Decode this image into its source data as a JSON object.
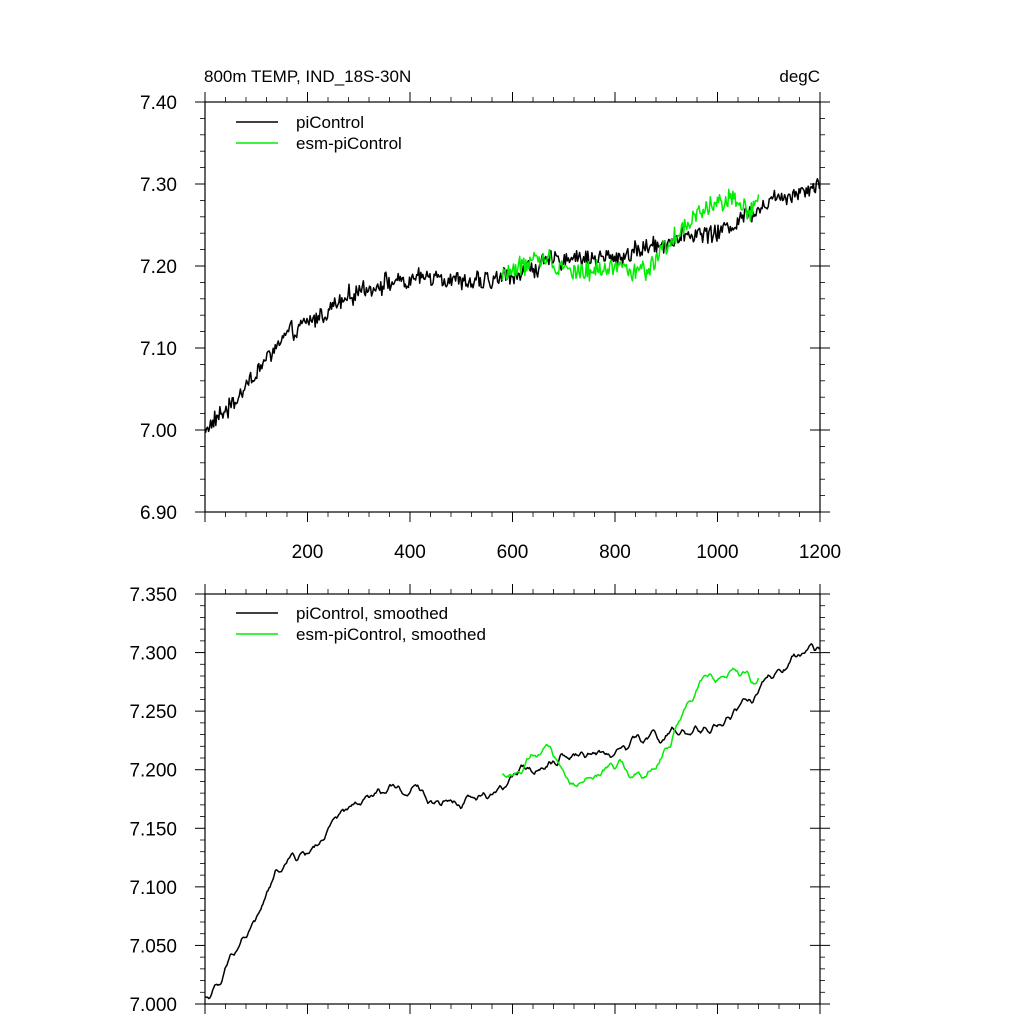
{
  "chart_data": [
    {
      "type": "line",
      "title": "800m TEMP, IND_18S-30N",
      "units": "degC",
      "xlabel": "",
      "ylabel": "",
      "xlim": [
        0,
        1200
      ],
      "ylim": [
        6.9,
        7.4
      ],
      "x_tick_labels": [
        "200",
        "400",
        "600",
        "800",
        "1000",
        "1200"
      ],
      "y_tick_labels": [
        "6.90",
        "7.00",
        "7.10",
        "7.20",
        "7.30",
        "7.40"
      ],
      "legend": [
        "piControl",
        "esm-piControl"
      ],
      "legend_position": "top-left",
      "series": [
        {
          "name": "piControl",
          "color": "#000000",
          "x_start": 1,
          "x_end": 1200,
          "trend_points": [
            [
              1,
              7.0
            ],
            [
              50,
              7.03
            ],
            [
              100,
              7.07
            ],
            [
              150,
              7.11
            ],
            [
              200,
              7.13
            ],
            [
              250,
              7.15
            ],
            [
              300,
              7.17
            ],
            [
              350,
              7.18
            ],
            [
              400,
              7.18
            ],
            [
              450,
              7.19
            ],
            [
              500,
              7.18
            ],
            [
              550,
              7.18
            ],
            [
              600,
              7.19
            ],
            [
              650,
              7.2
            ],
            [
              700,
              7.21
            ],
            [
              750,
              7.21
            ],
            [
              800,
              7.21
            ],
            [
              850,
              7.22
            ],
            [
              900,
              7.23
            ],
            [
              950,
              7.24
            ],
            [
              1000,
              7.24
            ],
            [
              1050,
              7.26
            ],
            [
              1100,
              7.28
            ],
            [
              1150,
              7.29
            ],
            [
              1200,
              7.3
            ]
          ],
          "noise_amplitude": 0.02
        },
        {
          "name": "esm-piControl",
          "color": "#00ee00",
          "x_start": 580,
          "x_end": 1080,
          "trend_points": [
            [
              580,
              7.19
            ],
            [
              620,
              7.2
            ],
            [
              660,
              7.21
            ],
            [
              700,
              7.2
            ],
            [
              740,
              7.19
            ],
            [
              780,
              7.2
            ],
            [
              820,
              7.2
            ],
            [
              860,
              7.19
            ],
            [
              900,
              7.22
            ],
            [
              940,
              7.25
            ],
            [
              980,
              7.27
            ],
            [
              1020,
              7.28
            ],
            [
              1060,
              7.27
            ],
            [
              1080,
              7.28
            ]
          ],
          "noise_amplitude": 0.022
        }
      ]
    },
    {
      "type": "line",
      "title": "",
      "xlabel": "",
      "ylabel": "",
      "xlim": [
        0,
        1200
      ],
      "ylim": [
        7.0,
        7.35
      ],
      "y_tick_labels": [
        "7.000",
        "7.050",
        "7.100",
        "7.150",
        "7.200",
        "7.250",
        "7.300",
        "7.350"
      ],
      "legend": [
        "piControl, smoothed",
        "esm-piControl, smoothed"
      ],
      "legend_position": "top-left",
      "series": [
        {
          "name": "piControl, smoothed",
          "color": "#000000",
          "x_start": 1,
          "x_end": 1200,
          "trend_points": [
            [
              1,
              7.005
            ],
            [
              30,
              7.015
            ],
            [
              60,
              7.05
            ],
            [
              100,
              7.07
            ],
            [
              150,
              7.12
            ],
            [
              200,
              7.13
            ],
            [
              250,
              7.15
            ],
            [
              300,
              7.17
            ],
            [
              350,
              7.18
            ],
            [
              400,
              7.18
            ],
            [
              450,
              7.175
            ],
            [
              500,
              7.175
            ],
            [
              550,
              7.18
            ],
            [
              600,
              7.19
            ],
            [
              650,
              7.205
            ],
            [
              700,
              7.215
            ],
            [
              750,
              7.215
            ],
            [
              800,
              7.215
            ],
            [
              850,
              7.225
            ],
            [
              900,
              7.23
            ],
            [
              950,
              7.225
            ],
            [
              1000,
              7.24
            ],
            [
              1050,
              7.255
            ],
            [
              1100,
              7.275
            ],
            [
              1150,
              7.29
            ],
            [
              1200,
              7.3
            ]
          ],
          "noise_amplitude": 0.01
        },
        {
          "name": "esm-piControl, smoothed",
          "color": "#00ee00",
          "x_start": 580,
          "x_end": 1080,
          "trend_points": [
            [
              580,
              7.195
            ],
            [
              620,
              7.2
            ],
            [
              660,
              7.215
            ],
            [
              700,
              7.2
            ],
            [
              740,
              7.185
            ],
            [
              780,
              7.2
            ],
            [
              820,
              7.2
            ],
            [
              860,
              7.19
            ],
            [
              900,
              7.22
            ],
            [
              940,
              7.255
            ],
            [
              980,
              7.275
            ],
            [
              1020,
              7.29
            ],
            [
              1050,
              7.28
            ],
            [
              1080,
              7.275
            ]
          ],
          "noise_amplitude": 0.01
        }
      ]
    }
  ]
}
